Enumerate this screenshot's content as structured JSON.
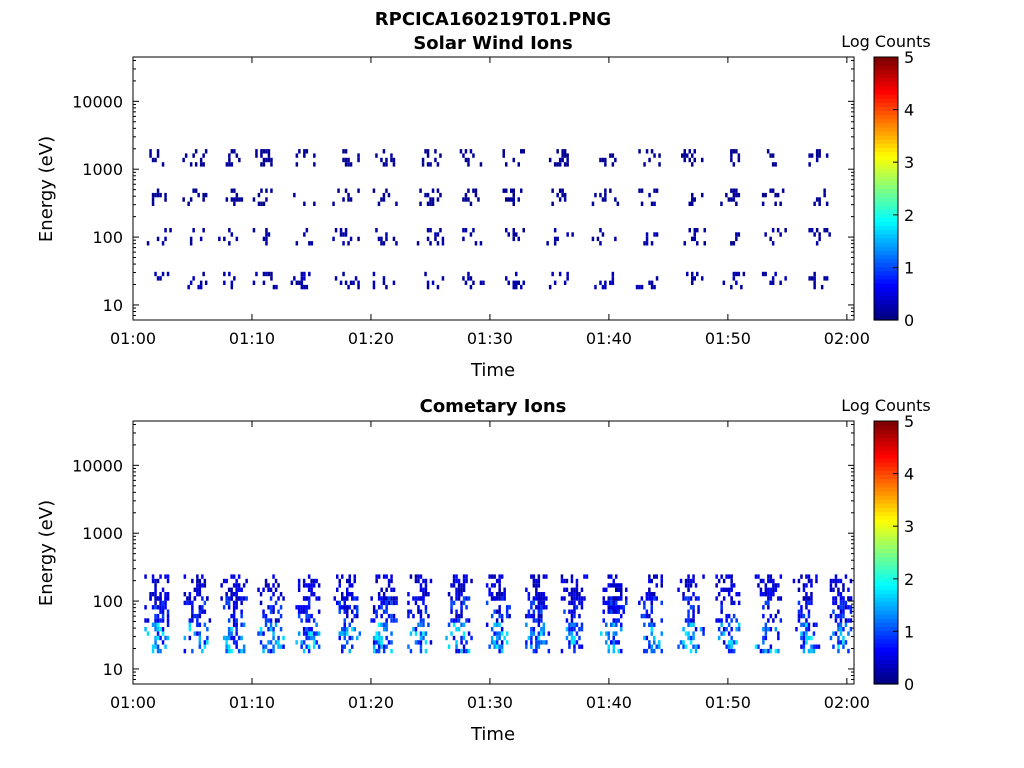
{
  "figure": {
    "title": "RPCICA160219T01.PNG",
    "colors": {
      "background": "#ffffff",
      "axis": "#000000",
      "colormap": "jet"
    }
  },
  "chart_data": [
    {
      "type": "heatmap",
      "title": "Solar Wind Ions",
      "xlabel": "Time",
      "ylabel": "Energy (eV)",
      "x_ticks": [
        "01:00",
        "01:10",
        "01:20",
        "01:30",
        "01:40",
        "01:50",
        "02:00"
      ],
      "y_ticks": [
        "10",
        "100",
        "1000",
        "10000"
      ],
      "y_scale": "log",
      "ylim": [
        6,
        45000
      ],
      "xlim_minutes": [
        0,
        60.6
      ],
      "colorbar": {
        "label": "Log Counts",
        "range": [
          0,
          5
        ],
        "ticks": [
          "0",
          "1",
          "2",
          "3",
          "4",
          "5"
        ]
      },
      "grid": false,
      "description_values": {
        "pulse_minutes": [
          2.0,
          5.2,
          8.2,
          10.9,
          14.3,
          17.8,
          21.2,
          24.9,
          28.3,
          31.9,
          35.8,
          39.6,
          43.1,
          46.9,
          50.4,
          53.7,
          57.4
        ],
        "bands_eV": [
          {
            "energy": 24,
            "level": 0.2
          },
          {
            "energy": 100,
            "level": 0.15
          },
          {
            "energy": 400,
            "level": 0.1
          },
          {
            "energy": 1500,
            "level": 0.1
          }
        ],
        "typical_log_counts": 0.2
      }
    },
    {
      "type": "heatmap",
      "title": "Cometary Ions",
      "xlabel": "Time",
      "ylabel": "Energy (eV)",
      "x_ticks": [
        "01:00",
        "01:10",
        "01:20",
        "01:30",
        "01:40",
        "01:50",
        "02:00"
      ],
      "y_ticks": [
        "10",
        "100",
        "1000",
        "10000"
      ],
      "y_scale": "log",
      "ylim": [
        6,
        45000
      ],
      "xlim_minutes": [
        0,
        60.6
      ],
      "colorbar": {
        "label": "Log Counts",
        "range": [
          0,
          5
        ],
        "ticks": [
          "0",
          "1",
          "2",
          "3",
          "4",
          "5"
        ]
      },
      "grid": false,
      "description_values": {
        "pulse_minutes": [
          2.0,
          5.3,
          8.4,
          11.5,
          14.7,
          17.9,
          21.0,
          24.1,
          27.3,
          30.5,
          33.8,
          37.0,
          40.3,
          43.5,
          46.8,
          50.0,
          53.3,
          56.5,
          59.4
        ],
        "bands_eV": [
          {
            "energy": 28,
            "level": 1.1
          },
          {
            "energy": 75,
            "level": 0.6
          },
          {
            "energy": 160,
            "level": 0.4
          }
        ],
        "typical_log_counts": 0.8
      }
    }
  ]
}
